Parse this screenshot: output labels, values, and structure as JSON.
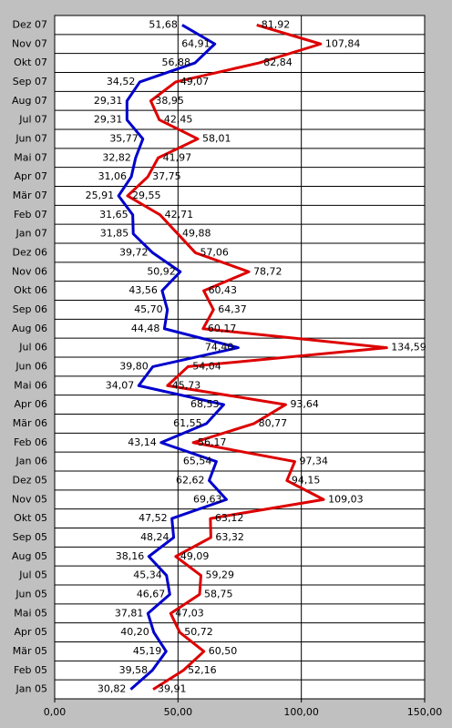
{
  "chart_data": {
    "type": "line",
    "categories": [
      "Jan 05",
      "Feb 05",
      "Mär 05",
      "Apr 05",
      "Mai 05",
      "Jun 05",
      "Jul 05",
      "Aug 05",
      "Sep 05",
      "Okt 05",
      "Nov 05",
      "Dez 05",
      "Jan 06",
      "Feb 06",
      "Mär 06",
      "Apr 06",
      "Mai 06",
      "Jun 06",
      "Jul 06",
      "Aug 06",
      "Sep 06",
      "Okt 06",
      "Nov 06",
      "Dez 06",
      "Jan 07",
      "Feb 07",
      "Mär 07",
      "Apr 07",
      "Mai 07",
      "Jun 07",
      "Jul 07",
      "Aug 07",
      "Sep 07",
      "Okt 07",
      "Nov 07",
      "Dez 07"
    ],
    "series": [
      {
        "color": "#0000cc",
        "values": [
          30.82,
          39.58,
          45.19,
          40.2,
          37.81,
          46.67,
          45.34,
          38.16,
          48.24,
          47.52,
          69.63,
          62.62,
          65.54,
          43.14,
          61.55,
          68.53,
          34.07,
          39.8,
          74.4,
          44.48,
          45.7,
          43.56,
          50.92,
          39.72,
          31.85,
          31.65,
          25.91,
          31.06,
          32.82,
          35.77,
          29.31,
          29.31,
          34.52,
          56.88,
          64.91,
          51.68
        ],
        "value_labels": [
          "30,82",
          "39,58",
          "45,19",
          "40,20",
          "37,81",
          "46,67",
          "45,34",
          "38,16",
          "48,24",
          "47,52",
          "69,63",
          "62,62",
          "65,54",
          "43,14",
          "61,55",
          "68,53",
          "34,07",
          "39,80",
          "74,40",
          "44,48",
          "45,70",
          "43,56",
          "50,92",
          "39,72",
          "31,85",
          "31,65",
          "25,91",
          "31,06",
          "32,82",
          "35,77",
          "29,31",
          "29,31",
          "34,52",
          "56,88",
          "64,91",
          "51,68"
        ]
      },
      {
        "color": "#dd0000",
        "values": [
          39.91,
          52.16,
          60.5,
          50.72,
          47.03,
          58.75,
          59.29,
          49.09,
          63.32,
          63.12,
          109.03,
          94.15,
          97.34,
          56.17,
          80.77,
          93.64,
          45.73,
          54.04,
          134.59,
          60.17,
          64.37,
          60.43,
          78.72,
          57.06,
          49.88,
          42.71,
          29.55,
          37.75,
          41.97,
          58.01,
          42.45,
          38.95,
          49.07,
          82.84,
          107.84,
          81.92
        ],
        "value_labels": [
          "39,91",
          "52,16",
          "60,50",
          "50,72",
          "47,03",
          "58,75",
          "59,29",
          "49,09",
          "63,32",
          "63,12",
          "109,03",
          "94,15",
          "97,34",
          "56,17",
          "80,77",
          "93,64",
          "45,73",
          "54,04",
          "134,59",
          "60,17",
          "64,37",
          "60,43",
          "78,72",
          "57,06",
          "49,88",
          "42,71",
          "29,55",
          "37,75",
          "41,97",
          "58,01",
          "42,45",
          "38,95",
          "49,07",
          "82,84",
          "107,84",
          "81,92"
        ]
      }
    ],
    "xlim": [
      0,
      150
    ],
    "xticks": [
      {
        "value": 0,
        "label": "0,00"
      },
      {
        "value": 50,
        "label": "50,00"
      },
      {
        "value": 100,
        "label": "100,00"
      },
      {
        "value": 150,
        "label": "150,00"
      }
    ],
    "grid": true
  }
}
